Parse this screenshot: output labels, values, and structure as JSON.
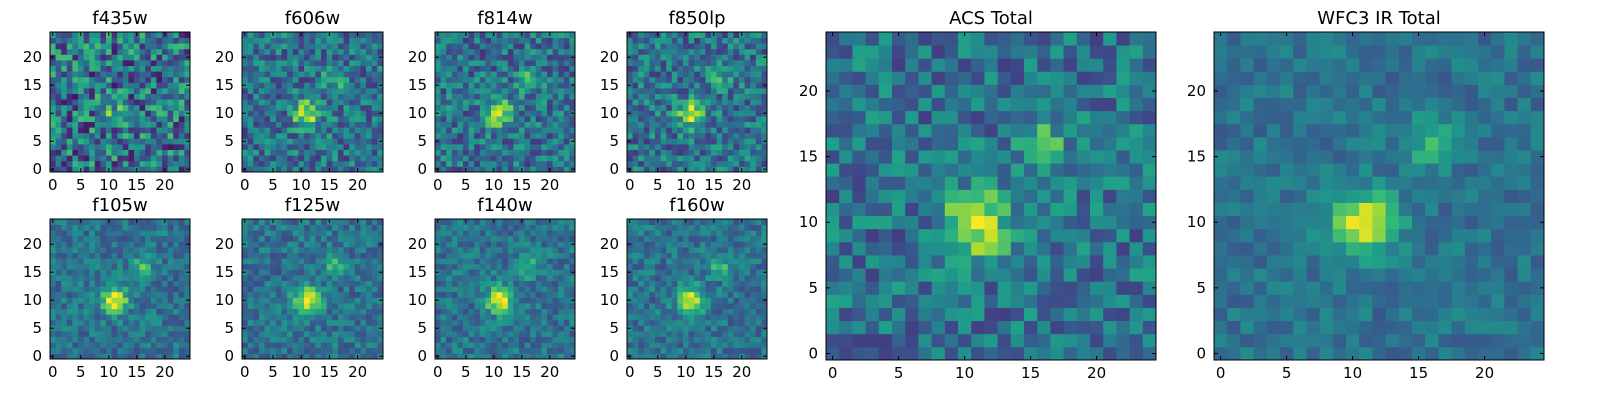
{
  "chart_data": {
    "type": "heatmap",
    "colormap": "viridis",
    "grid_size": 25,
    "panels": [
      {
        "id": "f435w",
        "title": "f435w",
        "xticks": [
          "0",
          "5",
          "10",
          "15",
          "20"
        ],
        "yticks": [
          "0",
          "5",
          "10",
          "15",
          "20"
        ],
        "noise": 0.65,
        "seed": 11,
        "peak": 0.35
      },
      {
        "id": "f606w",
        "title": "f606w",
        "xticks": [
          "0",
          "5",
          "10",
          "15",
          "20"
        ],
        "yticks": [
          "0",
          "5",
          "10",
          "15",
          "20"
        ],
        "noise": 0.45,
        "seed": 23,
        "peak": 0.9
      },
      {
        "id": "f814w",
        "title": "f814w",
        "xticks": [
          "0",
          "5",
          "10",
          "15",
          "20"
        ],
        "yticks": [
          "0",
          "5",
          "10",
          "15",
          "20"
        ],
        "noise": 0.45,
        "seed": 37,
        "peak": 0.85
      },
      {
        "id": "f850lp",
        "title": "f850lp",
        "xticks": [
          "0",
          "5",
          "10",
          "15",
          "20"
        ],
        "yticks": [
          "0",
          "5",
          "10",
          "15",
          "20"
        ],
        "noise": 0.45,
        "seed": 41,
        "peak": 0.85
      },
      {
        "id": "f105w",
        "title": "f105w",
        "xticks": [
          "0",
          "5",
          "10",
          "15",
          "20"
        ],
        "yticks": [
          "0",
          "5",
          "10",
          "15",
          "20"
        ],
        "noise": 0.3,
        "seed": 53,
        "peak": 1.0
      },
      {
        "id": "f125w",
        "title": "f125w",
        "xticks": [
          "0",
          "5",
          "10",
          "15",
          "20"
        ],
        "yticks": [
          "0",
          "5",
          "10",
          "15",
          "20"
        ],
        "noise": 0.3,
        "seed": 67,
        "peak": 1.0
      },
      {
        "id": "f140w",
        "title": "f140w",
        "xticks": [
          "0",
          "5",
          "10",
          "15",
          "20"
        ],
        "yticks": [
          "0",
          "5",
          "10",
          "15",
          "20"
        ],
        "noise": 0.3,
        "seed": 71,
        "peak": 1.0
      },
      {
        "id": "f160w",
        "title": "f160w",
        "xticks": [
          "0",
          "5",
          "10",
          "15",
          "20"
        ],
        "yticks": [
          "0",
          "5",
          "10",
          "15",
          "20"
        ],
        "noise": 0.3,
        "seed": 83,
        "peak": 1.0
      },
      {
        "id": "acs-total",
        "title": "ACS Total",
        "xticks": [
          "0",
          "5",
          "10",
          "15",
          "20"
        ],
        "yticks": [
          "0",
          "5",
          "10",
          "15",
          "20"
        ],
        "noise": 0.4,
        "seed": 97,
        "peak": 1.0
      },
      {
        "id": "wfc3-ir-total",
        "title": "WFC3 IR Total",
        "xticks": [
          "0",
          "5",
          "10",
          "15",
          "20"
        ],
        "yticks": [
          "0",
          "5",
          "10",
          "15",
          "20"
        ],
        "noise": 0.22,
        "seed": 101,
        "peak": 1.0
      }
    ],
    "source_center": [
      11,
      10
    ],
    "secondary_source_center": [
      16,
      16
    ],
    "xlim": [
      0,
      24
    ],
    "ylim": [
      0,
      24
    ]
  }
}
